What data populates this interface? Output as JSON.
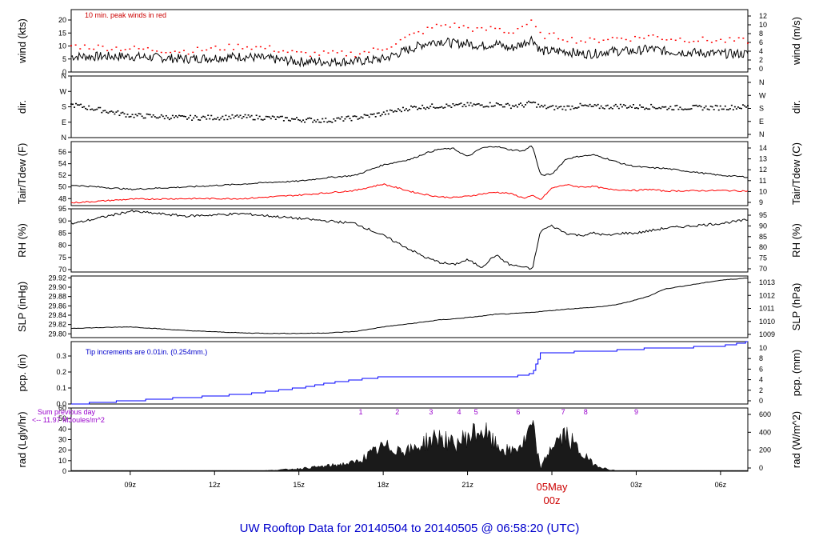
{
  "chart_data": {
    "type": "line",
    "title": "UW Rooftop Data for 20140504  to  20140505 @ 06:58:20  (UTC)",
    "x_ticks": [
      "09z",
      "12z",
      "15z",
      "18z",
      "21z",
      "00z",
      "03z",
      "06z"
    ],
    "date_marker": {
      "label": "05May",
      "sublabel": "00z"
    },
    "x_range_hours": [
      6.9,
      30.97
    ],
    "x_hours": [
      7,
      9,
      11,
      13,
      14,
      15,
      16,
      17,
      18,
      19,
      19.5,
      20,
      20.5,
      21,
      21.5,
      22,
      22.5,
      23,
      23.3,
      23.6,
      24,
      24.5,
      25,
      25.5,
      26,
      26.5,
      27,
      27.5,
      28,
      30,
      31
    ],
    "panels": [
      {
        "id": "wind",
        "left_label": "wind (kts)",
        "right_label": "wind (m/s)",
        "left_ticks": [
          "0",
          "5",
          "10",
          "15",
          "20"
        ],
        "left_range": [
          0,
          24
        ],
        "right_ticks": [
          "0",
          "2",
          "4",
          "6",
          "8",
          "10",
          "12"
        ],
        "annotation": "10 min. peak winds in red",
        "series": [
          {
            "name": "wind speed",
            "color": "#000000",
            "values": [
              6,
              6,
              5,
              6,
              5,
              4,
              4,
              4,
              5,
              9,
              11,
              12,
              11,
              11,
              10,
              11,
              9,
              11,
              13,
              8,
              8,
              8,
              7,
              7,
              8,
              8,
              8,
              9,
              8,
              7,
              7
            ]
          },
          {
            "name": "10 min peak",
            "color": "#ff0000",
            "values": [
              10,
              9,
              8,
              10,
              9,
              7,
              7,
              7,
              9,
              14,
              16,
              18,
              18,
              17,
              16,
              17,
              15,
              18,
              19,
              14,
              14,
              13,
              12,
              12,
              13,
              13,
              13,
              14,
              13,
              12,
              12
            ]
          }
        ]
      },
      {
        "id": "dir",
        "left_label": "dir.",
        "right_label": "dir.",
        "left_ticks": [
          "N",
          "E",
          "S",
          "W",
          "N"
        ],
        "left_range": [
          0,
          360
        ],
        "right_ticks": [
          "N",
          "E",
          "S",
          "W",
          "N"
        ],
        "series": [
          {
            "name": "wind direction",
            "color": "#000000",
            "values": [
              190,
              130,
              115,
              120,
              115,
              105,
              100,
              115,
              140,
              175,
              180,
              185,
              185,
              190,
              190,
              195,
              185,
              190,
              205,
              180,
              175,
              175,
              185,
              180,
              180,
              185,
              180,
              180,
              175,
              175,
              180
            ]
          }
        ]
      },
      {
        "id": "temp",
        "left_label": "Tair/Tdew (F)",
        "right_label": "Tair/Tdew (C)",
        "left_ticks": [
          "48",
          "50",
          "52",
          "54",
          "56"
        ],
        "left_range": [
          46.8,
          57.8
        ],
        "right_ticks": [
          "9",
          "10",
          "11",
          "12",
          "13",
          "14"
        ],
        "series": [
          {
            "name": "air temperature",
            "color": "#000000",
            "values": [
              50.3,
              49.6,
              50,
              50.5,
              50.8,
              51,
              51.6,
              52,
              53.8,
              54.8,
              55.8,
              56.5,
              56.6,
              55.2,
              56.7,
              57,
              56.4,
              56.2,
              57.2,
              52,
              52.2,
              54.8,
              55.3,
              55.5,
              54.8,
              54,
              53.5,
              53.3,
              53.2,
              52,
              51.7
            ]
          },
          {
            "name": "dew point",
            "color": "#ff0000",
            "values": [
              47.3,
              47.9,
              48,
              48,
              48.3,
              48.6,
              49,
              49.4,
              50.5,
              49.2,
              48.7,
              48.3,
              48.2,
              48.4,
              48.8,
              49.1,
              48.9,
              48.1,
              48.5,
              47.8,
              49.8,
              50.4,
              50,
              50.1,
              49.6,
              49.5,
              49.4,
              49.6,
              49.3,
              49.4,
              49.3
            ]
          }
        ]
      },
      {
        "id": "rh",
        "left_label": "RH (%)",
        "right_label": "RH (%)",
        "left_ticks": [
          "70",
          "75",
          "80",
          "85",
          "90",
          "95"
        ],
        "left_range": [
          69,
          95
        ],
        "right_ticks": [
          "70",
          "75",
          "80",
          "85",
          "90",
          "95"
        ],
        "series": [
          {
            "name": "relative humidity",
            "color": "#000000",
            "values": [
              89,
              94,
              92,
              93,
              92,
              91,
              90,
              89,
              84,
              78,
              75,
              73,
              72,
              74,
              71,
              76,
              72,
              71,
              70,
              86,
              88,
              85,
              84,
              85,
              84,
              85,
              85,
              86,
              87,
              89,
              90.5
            ]
          }
        ]
      },
      {
        "id": "slp",
        "left_label": "SLP (inHg)",
        "right_label": "SLP (hPa)",
        "left_ticks": [
          "29.80",
          "29.82",
          "29.84",
          "29.86",
          "29.88",
          "29.90",
          "29.92"
        ],
        "left_range": [
          29.792,
          29.924
        ],
        "right_ticks": [
          "1009",
          "1010",
          "1011",
          "1012",
          "1013"
        ],
        "series": [
          {
            "name": "sea level pressure",
            "color": "#000000",
            "values": [
              29.812,
              29.815,
              29.807,
              29.802,
              29.801,
              29.801,
              29.802,
              29.805,
              29.815,
              29.822,
              29.826,
              29.83,
              29.832,
              29.835,
              29.838,
              29.842,
              29.843,
              29.845,
              29.846,
              29.848,
              29.85,
              29.853,
              29.855,
              29.857,
              29.86,
              29.865,
              29.873,
              29.882,
              29.896,
              29.915,
              29.92
            ]
          }
        ]
      },
      {
        "id": "pcp",
        "left_label": "pcp. (in)",
        "right_label": "pcp. (mm)",
        "left_ticks": [
          "0.0",
          "0.1",
          "0.2",
          "0.3"
        ],
        "left_range": [
          0,
          0.39
        ],
        "right_ticks": [
          "0",
          "2",
          "4",
          "6",
          "8",
          "10"
        ],
        "annotation": "Tip increments are 0.01in. (0.254mm.)",
        "series": [
          {
            "name": "accumulated precipitation",
            "color": "#0000ff",
            "values": [
              0,
              0.02,
              0.04,
              0.06,
              0.08,
              0.1,
              0.13,
              0.15,
              0.17,
              0.17,
              0.17,
              0.17,
              0.17,
              0.17,
              0.17,
              0.17,
              0.17,
              0.18,
              0.19,
              0.32,
              0.32,
              0.32,
              0.33,
              0.33,
              0.33,
              0.34,
              0.34,
              0.35,
              0.35,
              0.36,
              0.39
            ]
          }
        ]
      },
      {
        "id": "rad",
        "left_label": "rad (Lgly/hr)",
        "right_label": "rad (W/m^2)",
        "left_ticks": [
          "0",
          "10",
          "20",
          "30",
          "40",
          "50",
          "60"
        ],
        "left_range": [
          0,
          60
        ],
        "right_ticks": [
          "0",
          "200",
          "400",
          "600"
        ],
        "annotation": "Sum previous day",
        "annotation2": "<-- 11.97 MJoules/m^2",
        "cloud_markers": [
          "1",
          "2",
          "3",
          "4",
          "5",
          "6",
          "7",
          "8",
          "9"
        ],
        "series": [
          {
            "name": "solar radiation",
            "color": "#000000",
            "values": [
              0,
              0,
              0,
              0,
              1,
              3,
              6,
              10,
              28,
              24,
              34,
              40,
              30,
              40,
              48,
              30,
              22,
              32,
              52,
              3,
              30,
              42,
              22,
              8,
              2,
              0,
              0,
              0,
              0,
              0,
              0
            ]
          }
        ]
      }
    ]
  }
}
